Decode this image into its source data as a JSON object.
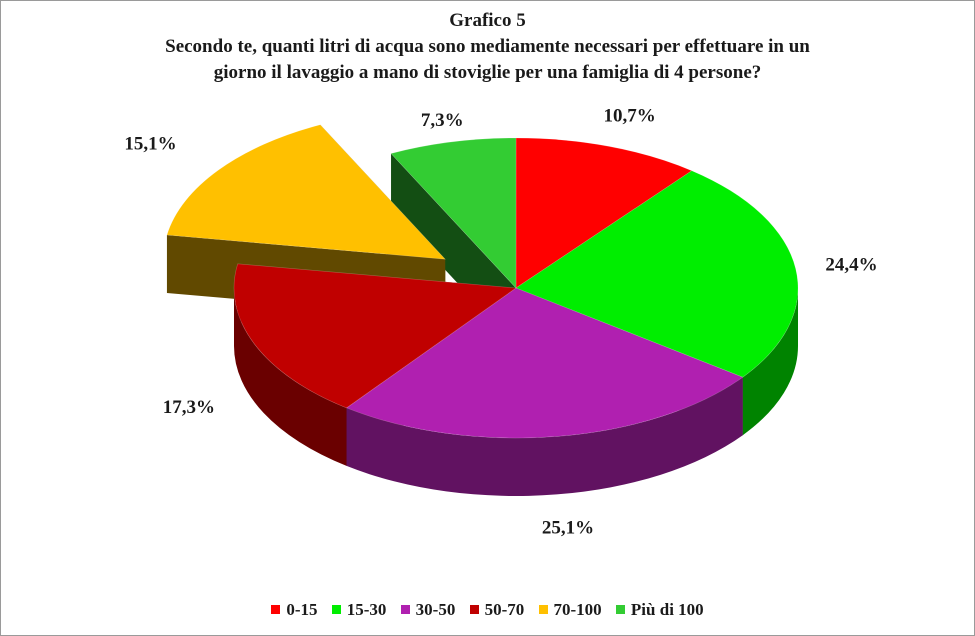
{
  "chart_data": {
    "type": "pie",
    "title": "Grafico 5",
    "subtitle_lines": [
      "Secondo te, quanti litri  di acqua sono mediamente necessari per effettuare in un",
      "giorno  il lavaggio a mano di stoviglie per una famiglia  di 4 persone?"
    ],
    "categories": [
      "0-15",
      "15-30",
      "30-50",
      "50-70",
      "70-100",
      "Più di 100"
    ],
    "values": [
      10.7,
      24.4,
      25.1,
      17.3,
      15.1,
      7.3
    ],
    "labels": [
      "10,7%",
      "24,4%",
      "25,1%",
      "17,3%",
      "15,1%",
      "7,3%"
    ],
    "colors": [
      "#ff0000",
      "#00ee00",
      "#b020b0",
      "#c00000",
      "#ffc000",
      "#33cc33"
    ],
    "exploded": "70-100",
    "legend_position": "bottom",
    "style": "3d"
  }
}
